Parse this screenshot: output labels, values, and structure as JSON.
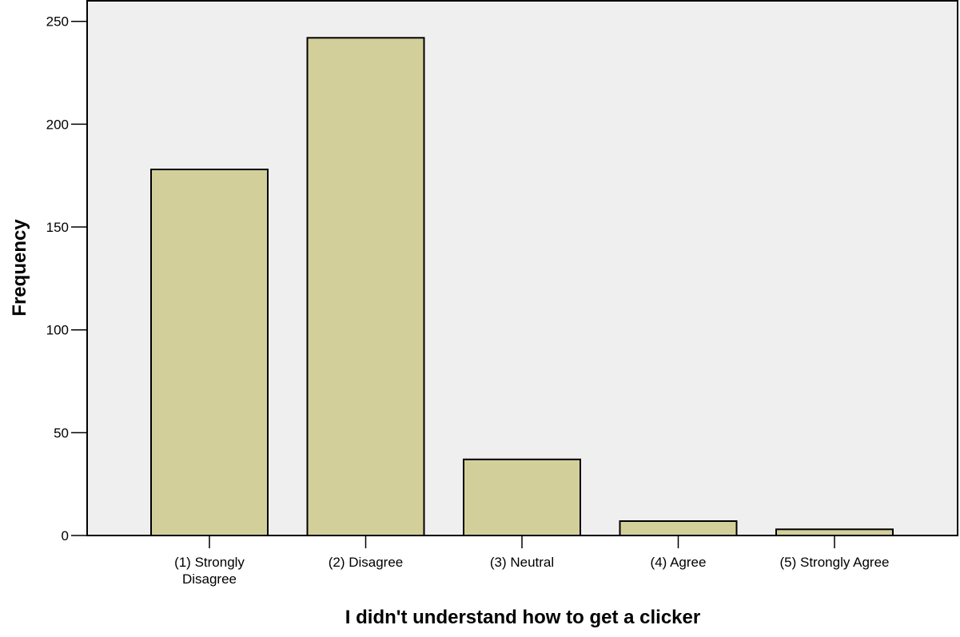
{
  "chart_data": {
    "type": "bar",
    "title": "",
    "xlabel": "I didn't understand how to get a clicker",
    "ylabel": "Frequency",
    "categories": [
      [
        "(1) Strongly",
        "Disagree"
      ],
      [
        "(2) Disagree"
      ],
      [
        "(3) Neutral"
      ],
      [
        "(4) Agree"
      ],
      [
        "(5) Strongly Agree"
      ]
    ],
    "values": [
      178,
      242,
      37,
      7,
      3
    ],
    "ylim": [
      0,
      260
    ],
    "yticks": [
      0,
      50,
      100,
      150,
      200,
      250
    ],
    "grid": false,
    "legend": "none",
    "colors": {
      "bar_fill": "#d3cf9a",
      "bar_stroke": "#000000",
      "plot_background": "#efefef",
      "page_background": "#ffffff"
    }
  }
}
